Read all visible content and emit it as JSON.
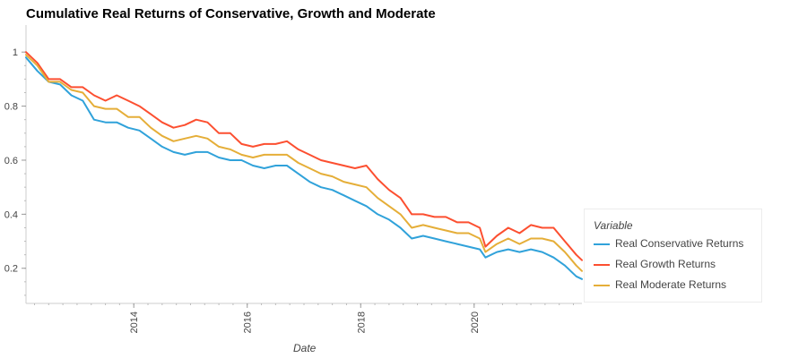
{
  "chart_data": {
    "type": "line",
    "title": "Cumulative Real Returns of Conservative, Growth and Moderate",
    "xlabel": "Date",
    "ylabel": "",
    "xlim": [
      2012.1,
      2021.9
    ],
    "ylim": [
      0.07,
      1.1
    ],
    "x_ticks": [
      "2014",
      "2016",
      "2018",
      "2020"
    ],
    "y_ticks": [
      0.2,
      0.4,
      0.6,
      0.8,
      1
    ],
    "grid": false,
    "legend": {
      "title": "Variable",
      "position": "right"
    },
    "x": [
      2012.1,
      2012.3,
      2012.5,
      2012.7,
      2012.9,
      2013.1,
      2013.3,
      2013.5,
      2013.7,
      2013.9,
      2014.1,
      2014.3,
      2014.5,
      2014.7,
      2014.9,
      2015.1,
      2015.3,
      2015.5,
      2015.7,
      2015.9,
      2016.1,
      2016.3,
      2016.5,
      2016.7,
      2016.9,
      2017.1,
      2017.3,
      2017.5,
      2017.7,
      2017.9,
      2018.1,
      2018.3,
      2018.5,
      2018.7,
      2018.9,
      2019.1,
      2019.3,
      2019.5,
      2019.7,
      2019.9,
      2020.1,
      2020.2,
      2020.4,
      2020.6,
      2020.8,
      2021.0,
      2021.2,
      2021.4,
      2021.6,
      2021.8,
      2021.9
    ],
    "series": [
      {
        "name": "Real Conservative Returns",
        "color": "#30a2da",
        "values": [
          0.98,
          0.93,
          0.89,
          0.88,
          0.84,
          0.82,
          0.75,
          0.74,
          0.74,
          0.72,
          0.71,
          0.68,
          0.65,
          0.63,
          0.62,
          0.63,
          0.63,
          0.61,
          0.6,
          0.6,
          0.58,
          0.57,
          0.58,
          0.58,
          0.55,
          0.52,
          0.5,
          0.49,
          0.47,
          0.45,
          0.43,
          0.4,
          0.38,
          0.35,
          0.31,
          0.32,
          0.31,
          0.3,
          0.29,
          0.28,
          0.27,
          0.24,
          0.26,
          0.27,
          0.26,
          0.27,
          0.26,
          0.24,
          0.21,
          0.17,
          0.16
        ]
      },
      {
        "name": "Real Growth Returns",
        "color": "#fc4f30",
        "values": [
          1.0,
          0.96,
          0.9,
          0.9,
          0.87,
          0.87,
          0.84,
          0.82,
          0.84,
          0.82,
          0.8,
          0.77,
          0.74,
          0.72,
          0.73,
          0.75,
          0.74,
          0.7,
          0.7,
          0.66,
          0.65,
          0.66,
          0.66,
          0.67,
          0.64,
          0.62,
          0.6,
          0.59,
          0.58,
          0.57,
          0.58,
          0.53,
          0.49,
          0.46,
          0.4,
          0.4,
          0.39,
          0.39,
          0.37,
          0.37,
          0.35,
          0.28,
          0.32,
          0.35,
          0.33,
          0.36,
          0.35,
          0.35,
          0.3,
          0.25,
          0.23
        ]
      },
      {
        "name": "Real Moderate Returns",
        "color": "#e5ae38",
        "values": [
          0.99,
          0.95,
          0.89,
          0.89,
          0.86,
          0.85,
          0.8,
          0.79,
          0.79,
          0.76,
          0.76,
          0.72,
          0.69,
          0.67,
          0.68,
          0.69,
          0.68,
          0.65,
          0.64,
          0.62,
          0.61,
          0.62,
          0.62,
          0.62,
          0.59,
          0.57,
          0.55,
          0.54,
          0.52,
          0.51,
          0.5,
          0.46,
          0.43,
          0.4,
          0.35,
          0.36,
          0.35,
          0.34,
          0.33,
          0.33,
          0.31,
          0.26,
          0.29,
          0.31,
          0.29,
          0.31,
          0.31,
          0.3,
          0.26,
          0.21,
          0.19
        ]
      }
    ]
  }
}
